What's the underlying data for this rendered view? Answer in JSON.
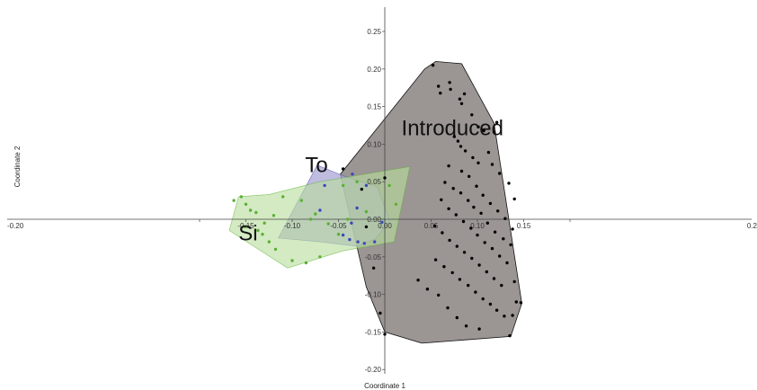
{
  "chart_data": {
    "type": "scatter",
    "title": "",
    "xlabel": "Coordinate 1",
    "ylabel": "Coordinate 2",
    "xlim": [
      -0.2,
      0.2
    ],
    "ylim": [
      -0.2,
      0.25
    ],
    "x_ticks": [
      "-0.20",
      "-0.15",
      "-0.10",
      "-0.05",
      "0.00",
      "0.05",
      "0.10",
      "0.15",
      "0.2"
    ],
    "y_ticks": [
      "0.25",
      "0.20",
      "0.15",
      "0.10",
      "0.05",
      "0.00",
      "-0.05",
      "-0.10",
      "-0.15",
      "-0.20"
    ],
    "series": [
      {
        "name": "Introduced",
        "color": "#000000",
        "hull_fill": "#9b9593",
        "points": [
          [
            -0.045,
            0.067
          ],
          [
            0.0,
            0.055
          ],
          [
            0.052,
            0.205
          ],
          [
            0.058,
            0.177
          ],
          [
            0.06,
            0.168
          ],
          [
            0.07,
            0.182
          ],
          [
            0.071,
            0.173
          ],
          [
            0.081,
            0.16
          ],
          [
            0.083,
            0.154
          ],
          [
            0.086,
            0.167
          ],
          [
            0.094,
            0.139
          ],
          [
            0.101,
            0.123
          ],
          [
            0.107,
            0.118
          ],
          [
            0.118,
            0.116
          ],
          [
            0.121,
            0.129
          ],
          [
            0.075,
            0.11
          ],
          [
            0.079,
            0.104
          ],
          [
            0.082,
            0.097
          ],
          [
            0.087,
            0.091
          ],
          [
            0.095,
            0.082
          ],
          [
            0.101,
            0.075
          ],
          [
            0.112,
            0.089
          ],
          [
            0.116,
            0.073
          ],
          [
            0.124,
            0.061
          ],
          [
            0.134,
            0.048
          ],
          [
            0.14,
            0.027
          ],
          [
            0.069,
            0.071
          ],
          [
            0.083,
            0.064
          ],
          [
            0.091,
            0.057
          ],
          [
            0.099,
            0.044
          ],
          [
            0.106,
            0.032
          ],
          [
            0.114,
            0.021
          ],
          [
            0.122,
            0.011
          ],
          [
            0.13,
            0.001
          ],
          [
            0.138,
            -0.013
          ],
          [
            0.065,
            0.049
          ],
          [
            0.074,
            0.041
          ],
          [
            0.082,
            0.035
          ],
          [
            0.09,
            0.025
          ],
          [
            0.096,
            0.016
          ],
          [
            0.104,
            0.008
          ],
          [
            0.111,
            -0.005
          ],
          [
            0.119,
            -0.017
          ],
          [
            0.128,
            -0.026
          ],
          [
            0.136,
            -0.034
          ],
          [
            0.061,
            0.026
          ],
          [
            0.069,
            0.014
          ],
          [
            0.077,
            0.006
          ],
          [
            0.085,
            -0.003
          ],
          [
            0.093,
            -0.012
          ],
          [
            0.1,
            -0.021
          ],
          [
            0.108,
            -0.031
          ],
          [
            0.116,
            -0.039
          ],
          [
            0.124,
            -0.049
          ],
          [
            0.132,
            -0.058
          ],
          [
            0.054,
            -0.009
          ],
          [
            0.062,
            -0.018
          ],
          [
            0.07,
            -0.028
          ],
          [
            0.078,
            -0.036
          ],
          [
            0.086,
            -0.044
          ],
          [
            0.094,
            -0.052
          ],
          [
            0.102,
            -0.061
          ],
          [
            0.11,
            -0.07
          ],
          [
            0.118,
            -0.079
          ],
          [
            0.126,
            -0.088
          ],
          [
            0.055,
            -0.054
          ],
          [
            0.064,
            -0.063
          ],
          [
            0.073,
            -0.071
          ],
          [
            0.081,
            -0.08
          ],
          [
            0.09,
            -0.088
          ],
          [
            0.098,
            -0.097
          ],
          [
            0.106,
            -0.106
          ],
          [
            0.114,
            -0.113
          ],
          [
            0.121,
            -0.121
          ],
          [
            0.129,
            -0.129
          ],
          [
            0.036,
            -0.081
          ],
          [
            0.046,
            -0.093
          ],
          [
            0.058,
            -0.101
          ],
          [
            0.068,
            -0.118
          ],
          [
            0.078,
            -0.131
          ],
          [
            0.088,
            -0.142
          ],
          [
            0.102,
            -0.146
          ],
          [
            0.138,
            -0.128
          ],
          [
            0.142,
            -0.11
          ],
          [
            0.135,
            -0.155
          ],
          [
            0.0,
            -0.153
          ],
          [
            -0.005,
            -0.125
          ],
          [
            -0.012,
            -0.065
          ],
          [
            -0.02,
            -0.01
          ],
          [
            -0.025,
            0.04
          ],
          [
            0.147,
            -0.111
          ],
          [
            0.14,
            -0.083
          ]
        ],
        "hull": [
          [
            -0.048,
            0.06
          ],
          [
            0.043,
            0.2
          ],
          [
            0.055,
            0.21
          ],
          [
            0.083,
            0.207
          ],
          [
            0.118,
            0.128
          ],
          [
            0.148,
            -0.112
          ],
          [
            0.136,
            -0.156
          ],
          [
            0.04,
            -0.165
          ],
          [
            0.0,
            -0.15
          ],
          [
            -0.02,
            -0.09
          ],
          [
            -0.035,
            -0.01
          ]
        ]
      },
      {
        "name": "To",
        "color": "#3a49b8",
        "hull_fill": "#a6a2d3",
        "points": [
          [
            -0.035,
            0.06
          ],
          [
            -0.02,
            0.045
          ],
          [
            -0.03,
            0.015
          ],
          [
            -0.036,
            -0.005
          ],
          [
            -0.045,
            -0.021
          ],
          [
            -0.038,
            -0.027
          ],
          [
            -0.029,
            -0.03
          ],
          [
            -0.022,
            -0.032
          ],
          [
            -0.011,
            -0.03
          ],
          [
            -0.003,
            -0.004
          ],
          [
            -0.065,
            0.045
          ],
          [
            -0.07,
            0.012
          ]
        ],
        "hull": [
          [
            -0.115,
            -0.025
          ],
          [
            -0.073,
            0.072
          ],
          [
            -0.045,
            0.058
          ],
          [
            -0.008,
            0.043
          ],
          [
            0.005,
            -0.002
          ],
          [
            -0.01,
            -0.026
          ],
          [
            -0.03,
            -0.036
          ],
          [
            -0.07,
            -0.03
          ]
        ]
      },
      {
        "name": "Si",
        "color": "#5bb033",
        "hull_fill": "#b8dd9c",
        "points": [
          [
            -0.163,
            0.025
          ],
          [
            -0.155,
            0.03
          ],
          [
            -0.15,
            0.02
          ],
          [
            -0.145,
            0.012
          ],
          [
            -0.139,
            0.009
          ],
          [
            -0.151,
            -0.01
          ],
          [
            -0.137,
            -0.015
          ],
          [
            -0.132,
            -0.02
          ],
          [
            -0.125,
            -0.03
          ],
          [
            -0.118,
            -0.04
          ],
          [
            -0.1,
            -0.055
          ],
          [
            -0.085,
            -0.058
          ],
          [
            -0.07,
            -0.05
          ],
          [
            -0.05,
            -0.02
          ],
          [
            -0.04,
            0.0
          ],
          [
            -0.09,
            0.025
          ],
          [
            -0.075,
            0.007
          ],
          [
            -0.061,
            -0.006
          ],
          [
            -0.045,
            0.045
          ],
          [
            -0.03,
            0.05
          ],
          [
            0.005,
            0.045
          ],
          [
            0.012,
            0.02
          ],
          [
            -0.02,
            0.01
          ],
          [
            -0.11,
            0.03
          ],
          [
            -0.12,
            0.005
          ],
          [
            -0.13,
            -0.005
          ],
          [
            -0.08,
            0.0
          ]
        ],
        "hull": [
          [
            -0.168,
            -0.015
          ],
          [
            -0.158,
            0.03
          ],
          [
            -0.125,
            0.033
          ],
          [
            -0.07,
            0.05
          ],
          [
            0.027,
            0.07
          ],
          [
            0.01,
            -0.03
          ],
          [
            -0.045,
            -0.042
          ],
          [
            -0.105,
            -0.065
          ]
        ]
      }
    ]
  }
}
